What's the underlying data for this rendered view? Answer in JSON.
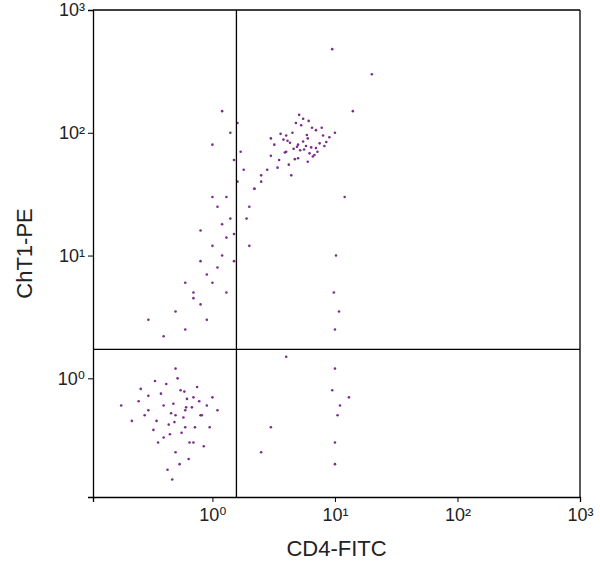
{
  "chart_data": {
    "type": "scatter",
    "x_label": "CD4-FITC",
    "y_label": "ChT1-PE",
    "log": true,
    "grid": false,
    "color": "#7b2d8e",
    "marker": "circle",
    "xlim": [
      0.106,
      1000
    ],
    "ylim": [
      0.108,
      1000
    ],
    "xticks": [
      {
        "value": 1,
        "label": "10⁰"
      },
      {
        "value": 10,
        "label": "10¹"
      },
      {
        "value": 100,
        "label": "10²"
      },
      {
        "value": 1000,
        "label": "10³"
      }
    ],
    "yticks": [
      {
        "value": 1,
        "label": "10⁰"
      },
      {
        "value": 10,
        "label": "10¹"
      },
      {
        "value": 100,
        "label": "10²"
      },
      {
        "value": 1000,
        "label": "10³"
      }
    ],
    "quadrant": {
      "x": 1.57,
      "y": 1.72
    },
    "x": [
      0.5,
      0.4,
      0.6,
      0.7,
      0.3,
      0.45,
      0.55,
      0.8,
      0.35,
      0.65,
      0.25,
      0.9,
      0.5,
      0.42,
      0.6,
      0.38,
      0.72,
      0.48,
      0.58,
      0.33,
      0.28,
      0.85,
      1.0,
      0.52,
      0.62,
      0.44,
      0.36,
      0.68,
      0.75,
      0.54,
      0.46,
      0.4,
      0.3,
      0.22,
      0.18,
      0.95,
      1.1,
      0.5,
      0.56,
      0.64,
      0.78,
      0.34,
      0.43,
      0.49,
      0.59,
      0.7,
      0.26,
      0.82,
      0.61,
      0.47,
      5,
      4,
      6,
      7,
      3.5,
      4.5,
      5.5,
      8,
      3,
      6.5,
      4.2,
      5.2,
      7.5,
      3.8,
      6.2,
      4.8,
      5.8,
      9,
      2.8,
      4,
      5,
      6,
      7,
      3.2,
      5.5,
      4.6,
      6.8,
      8.5,
      3.6,
      5.3,
      4.4,
      6.4,
      7.2,
      2.5,
      5.1,
      4.1,
      5.9,
      3.4,
      6.6,
      4.9,
      10,
      7.8,
      2.2,
      3,
      4.3,
      5.6,
      6.1,
      3.9,
      8.2,
      4.7,
      0.6,
      0.8,
      1.0,
      1.2,
      1.5,
      0.9,
      1.1,
      1.4,
      0.7,
      1.3,
      1.6,
      2.0,
      1.8,
      0.5,
      1.0,
      1.2,
      0.8,
      1.5,
      2.2,
      1.7,
      0.4,
      0.9,
      1.3,
      1.1,
      2.5,
      1.4,
      0.7,
      1.0,
      1.9,
      1.6,
      0.6,
      1.2,
      0.3,
      0.8,
      1.5,
      2.0,
      1.0,
      1.3,
      14,
      12,
      10,
      10.5,
      9.5,
      10,
      11,
      10,
      9.8,
      10.2,
      3,
      4,
      2.5,
      13,
      10,
      10.8,
      20,
      9.5
    ],
    "values": [
      0.5,
      0.6,
      0.4,
      0.7,
      0.55,
      0.35,
      0.8,
      0.5,
      0.45,
      0.3,
      0.65,
      0.6,
      0.25,
      0.9,
      0.55,
      0.75,
      0.4,
      0.62,
      0.48,
      0.38,
      0.5,
      0.28,
      0.7,
      1.0,
      0.68,
      0.42,
      0.3,
      0.58,
      0.85,
      0.2,
      0.52,
      0.33,
      0.72,
      0.45,
      0.6,
      0.4,
      0.55,
      1.2,
      0.36,
      0.22,
      0.65,
      0.95,
      0.18,
      0.44,
      0.78,
      0.3,
      0.82,
      0.5,
      0.58,
      0.15,
      80,
      70,
      90,
      75,
      60,
      100,
      85,
      95,
      65,
      110,
      55,
      72,
      82,
      88,
      68,
      120,
      78,
      92,
      50,
      95,
      62,
      58,
      105,
      80,
      130,
      74,
      66,
      84,
      98,
      115,
      45,
      76,
      70,
      40,
      140,
      86,
      96,
      52,
      64,
      77,
      100,
      110,
      35,
      90,
      83,
      73,
      125,
      69,
      78,
      61,
      2.5,
      4,
      6,
      10,
      15,
      3,
      8,
      20,
      5,
      30,
      40,
      25,
      50,
      3.5,
      12,
      18,
      9,
      60,
      35,
      70,
      2.2,
      7,
      14,
      25,
      45,
      100,
      4.5,
      30,
      20,
      120,
      6,
      150,
      3,
      16,
      9,
      12,
      80,
      5,
      150,
      30,
      0.3,
      0.5,
      0.8,
      1.2,
      0.6,
      2.5,
      5,
      10,
      0.4,
      1.5,
      0.25,
      0.7,
      0.2,
      3.5,
      300,
      480
    ]
  }
}
